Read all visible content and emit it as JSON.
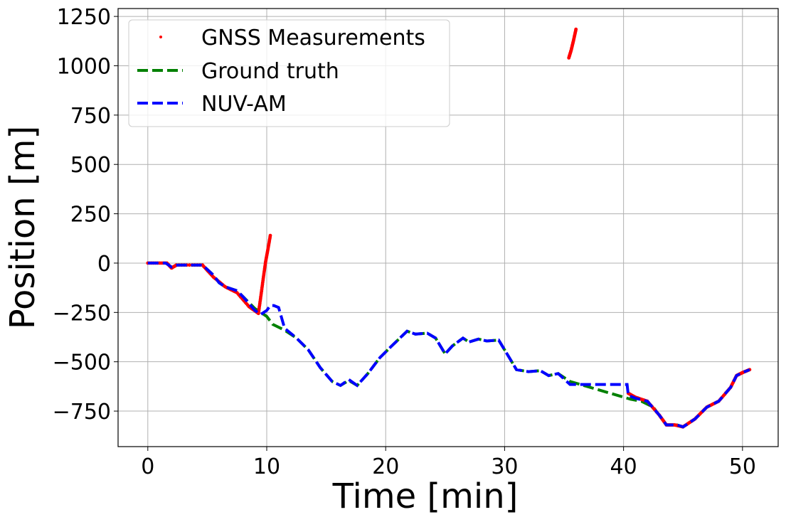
{
  "chart_data": {
    "type": "line",
    "xlabel": "Time [min]",
    "ylabel": "Position [m]",
    "xlim": [
      -2.5,
      53
    ],
    "ylim": [
      -930,
      1290
    ],
    "x_ticks": [
      0,
      10,
      20,
      30,
      40,
      50
    ],
    "y_ticks": [
      1250,
      1000,
      750,
      500,
      250,
      0,
      -250,
      -500,
      -750
    ],
    "x_tick_labels": [
      "0",
      "10",
      "20",
      "30",
      "40",
      "50"
    ],
    "y_tick_labels": [
      "1250",
      "1000",
      "750",
      "500",
      "250",
      "0",
      "−250",
      "−500",
      "−750"
    ],
    "grid": true,
    "legend_position": "top-left",
    "series": [
      {
        "name": "GNSS Measurements",
        "style": "points",
        "color": "#ff0000",
        "segments": [
          {
            "x": [
              0,
              1.6,
              2.0,
              2.4,
              4.6,
              5.5,
              6.5,
              7.5,
              8.5,
              9.3
            ],
            "y": [
              0,
              0,
              -25,
              -10,
              -10,
              -70,
              -120,
              -150,
              -220,
              -255
            ]
          },
          {
            "x": [
              9.3,
              9.5,
              9.7,
              9.9,
              10.1,
              10.3
            ],
            "y": [
              -255,
              -170,
              -80,
              5,
              70,
              140
            ]
          },
          {
            "x": [
              35.4,
              35.6,
              35.8,
              36.0
            ],
            "y": [
              1040,
              1080,
              1130,
              1185
            ]
          },
          {
            "x": [
              40.4,
              41.0,
              42.0,
              43.0,
              43.6,
              44.3,
              45.0,
              46.0,
              47.0,
              48.0,
              49.0,
              49.5,
              50.0,
              50.6
            ],
            "y": [
              -660,
              -680,
              -700,
              -770,
              -820,
              -820,
              -830,
              -790,
              -730,
              -700,
              -630,
              -570,
              -555,
              -540
            ]
          }
        ]
      },
      {
        "name": "Ground truth",
        "style": "dashed",
        "color": "#008000",
        "x": [
          0,
          1.5,
          2.0,
          2.5,
          4.6,
          5.5,
          6.0,
          6.5,
          7.5,
          8.0,
          9.0,
          10.0,
          10.5,
          11.5,
          12.5,
          13.5,
          14.5,
          15.5,
          16.2,
          16.9,
          17.6,
          18.5,
          19.5,
          20.5,
          21.8,
          22.5,
          23.5,
          24.2,
          25.0,
          25.6,
          26.5,
          27.0,
          27.8,
          28.5,
          29.5,
          30.5,
          31.0,
          32.0,
          33.0,
          33.7,
          34.5,
          35.5,
          40.6,
          41.5,
          42.5,
          43.6,
          44.5,
          45.0,
          46.0,
          47.0,
          48.0,
          49.0,
          49.5,
          50.0,
          50.6
        ],
        "y": [
          0,
          0,
          -20,
          -10,
          -10,
          -60,
          -100,
          -120,
          -140,
          -170,
          -230,
          -270,
          -310,
          -340,
          -380,
          -440,
          -530,
          -600,
          -620,
          -595,
          -620,
          -560,
          -480,
          -420,
          -345,
          -360,
          -355,
          -380,
          -460,
          -420,
          -380,
          -400,
          -385,
          -395,
          -390,
          -490,
          -540,
          -550,
          -545,
          -570,
          -560,
          -600,
          -690,
          -700,
          -730,
          -820,
          -820,
          -830,
          -790,
          -730,
          -700,
          -630,
          -570,
          -555,
          -540
        ]
      },
      {
        "name": "NUV-AM",
        "style": "dashed",
        "color": "#0000ff",
        "x": [
          0,
          1.5,
          2.0,
          2.5,
          4.6,
          5.5,
          6.0,
          6.5,
          7.5,
          8.0,
          9.0,
          9.5,
          10.0,
          10.3,
          10.6,
          11.0,
          11.5,
          12.5,
          13.5,
          14.5,
          15.5,
          16.2,
          16.9,
          17.6,
          18.5,
          19.5,
          20.5,
          21.8,
          22.5,
          23.5,
          24.2,
          25.0,
          25.6,
          26.5,
          27.0,
          27.8,
          28.5,
          29.5,
          30.5,
          31.0,
          32.0,
          33.0,
          33.7,
          34.5,
          35.5,
          40.3,
          40.4,
          41.0,
          42.0,
          43.0,
          43.6,
          44.5,
          45.0,
          46.0,
          47.0,
          48.0,
          49.0,
          49.5,
          50.0,
          50.6
        ],
        "y": [
          0,
          0,
          -20,
          -10,
          -10,
          -60,
          -100,
          -120,
          -140,
          -170,
          -240,
          -260,
          -240,
          -215,
          -215,
          -225,
          -330,
          -380,
          -440,
          -530,
          -600,
          -620,
          -590,
          -620,
          -560,
          -480,
          -420,
          -345,
          -360,
          -355,
          -380,
          -460,
          -420,
          -380,
          -400,
          -385,
          -395,
          -390,
          -490,
          -540,
          -550,
          -545,
          -570,
          -560,
          -615,
          -615,
          -670,
          -685,
          -700,
          -770,
          -820,
          -820,
          -830,
          -790,
          -730,
          -700,
          -630,
          -570,
          -555,
          -540
        ]
      }
    ]
  }
}
